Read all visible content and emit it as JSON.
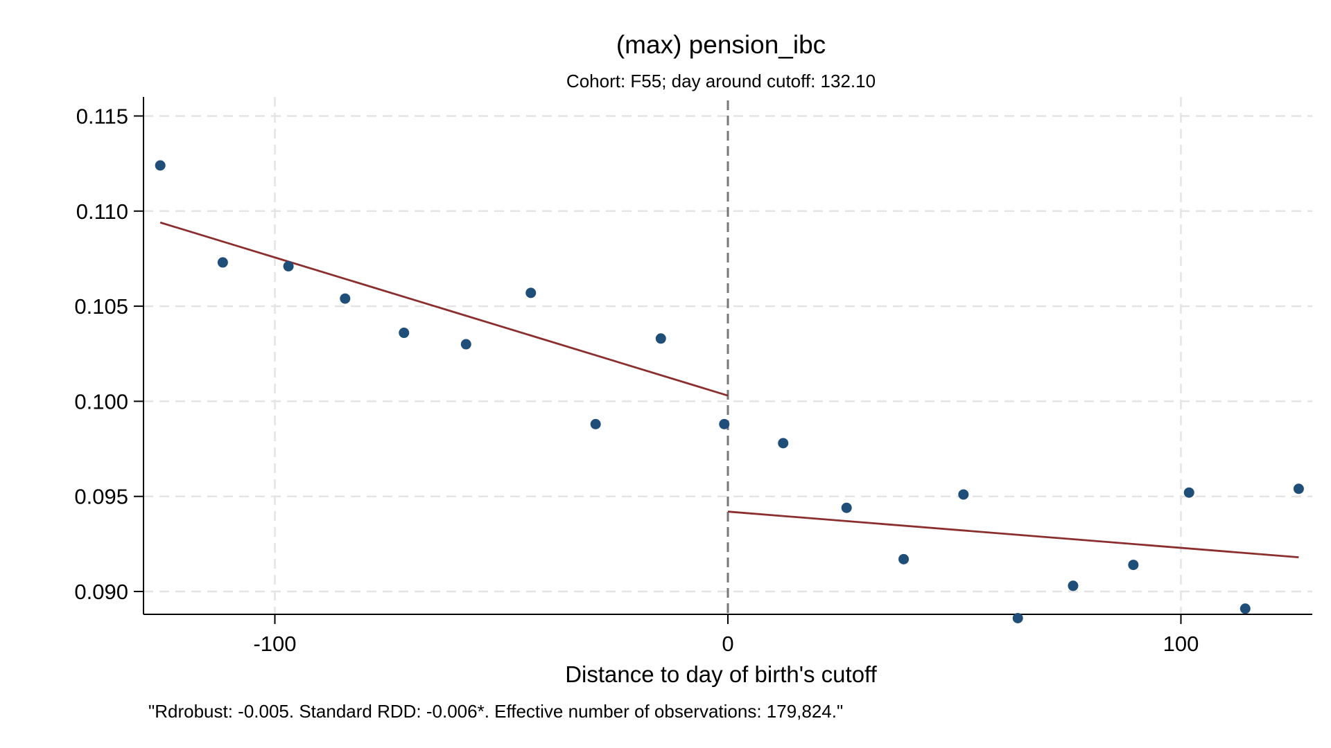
{
  "chart_data": {
    "type": "scatter",
    "title": "(max) pension_ibc",
    "subtitle": "Cohort: F55; day around cutoff:  132.10",
    "xlabel": "Distance to day of birth's cutoff",
    "ylabel": "",
    "note": "\"Rdrobust: -0.005. Standard RDD: -0.006*. Effective number of observations: 179,824.\"",
    "xlim": [
      -129,
      129
    ],
    "ylim": [
      0.0888,
      0.116
    ],
    "xticks": [
      -100,
      0,
      100
    ],
    "xtick_labels": [
      "-100",
      "0",
      "100"
    ],
    "yticks": [
      0.09,
      0.095,
      0.1,
      0.105,
      0.11,
      0.115
    ],
    "ytick_labels": [
      "0.090",
      "0.095",
      "0.100",
      "0.105",
      "0.110",
      "0.115"
    ],
    "grid": true,
    "cutoff_x": 0,
    "points": {
      "x": [
        -125.3,
        -111.5,
        -97.0,
        -84.5,
        -71.5,
        -57.8,
        -43.5,
        -29.2,
        -14.8,
        -0.8,
        12.2,
        26.2,
        38.8,
        52.0,
        64.0,
        76.2,
        89.5,
        101.8,
        114.2,
        126.0
      ],
      "y": [
        0.1124,
        0.1073,
        0.1071,
        0.1054,
        0.1036,
        0.103,
        0.1057,
        0.0988,
        0.1033,
        0.0988,
        0.0978,
        0.0944,
        0.0917,
        0.0951,
        0.0886,
        0.0903,
        0.0914,
        0.0952,
        0.0891,
        0.0954
      ]
    },
    "fit_lines": [
      {
        "x": [
          -125.3,
          0
        ],
        "y": [
          0.1094,
          0.1003
        ]
      },
      {
        "x": [
          0,
          126.0
        ],
        "y": [
          0.0942,
          0.0918
        ]
      }
    ],
    "colors": {
      "points": "#1f4e79",
      "fit": "#8b2e2e",
      "cutoff": "#777777"
    }
  }
}
